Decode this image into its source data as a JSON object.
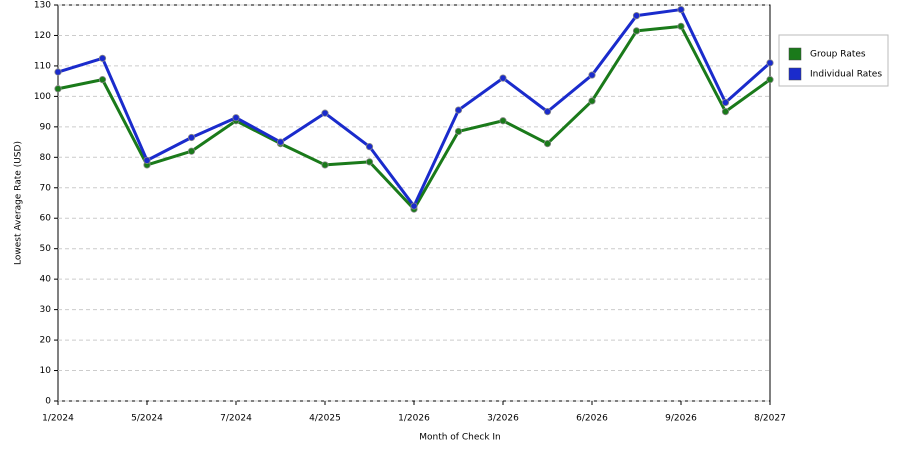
{
  "chart_data": {
    "type": "line",
    "x_label": "Month of Check In",
    "y_label": "Lowest Average Rate (USD)",
    "categories": [
      "1/2024",
      null,
      "5/2024",
      null,
      "7/2024",
      null,
      "4/2025",
      null,
      "1/2026",
      null,
      "3/2026",
      null,
      "6/2026",
      null,
      "9/2026",
      null,
      "8/2027"
    ],
    "series": [
      {
        "name": "Group Rates",
        "color": "#1a7a1a",
        "values": [
          102.5,
          105.5,
          77.5,
          82,
          92,
          84.5,
          77.5,
          78.5,
          63,
          88.5,
          92,
          84.5,
          98.5,
          121.5,
          123,
          95,
          105.5
        ]
      },
      {
        "name": "Individual Rates",
        "color": "#1a2bcc",
        "values": [
          108,
          112.5,
          79,
          86.5,
          93,
          85,
          94.5,
          83.5,
          64,
          95.5,
          106,
          95,
          107,
          126.5,
          128.5,
          98,
          111
        ]
      }
    ],
    "ylim": [
      0,
      130
    ],
    "yticks": [
      0,
      10,
      20,
      30,
      40,
      50,
      60,
      70,
      80,
      90,
      100,
      110,
      120,
      130
    ],
    "grid": true,
    "legend": "right"
  }
}
